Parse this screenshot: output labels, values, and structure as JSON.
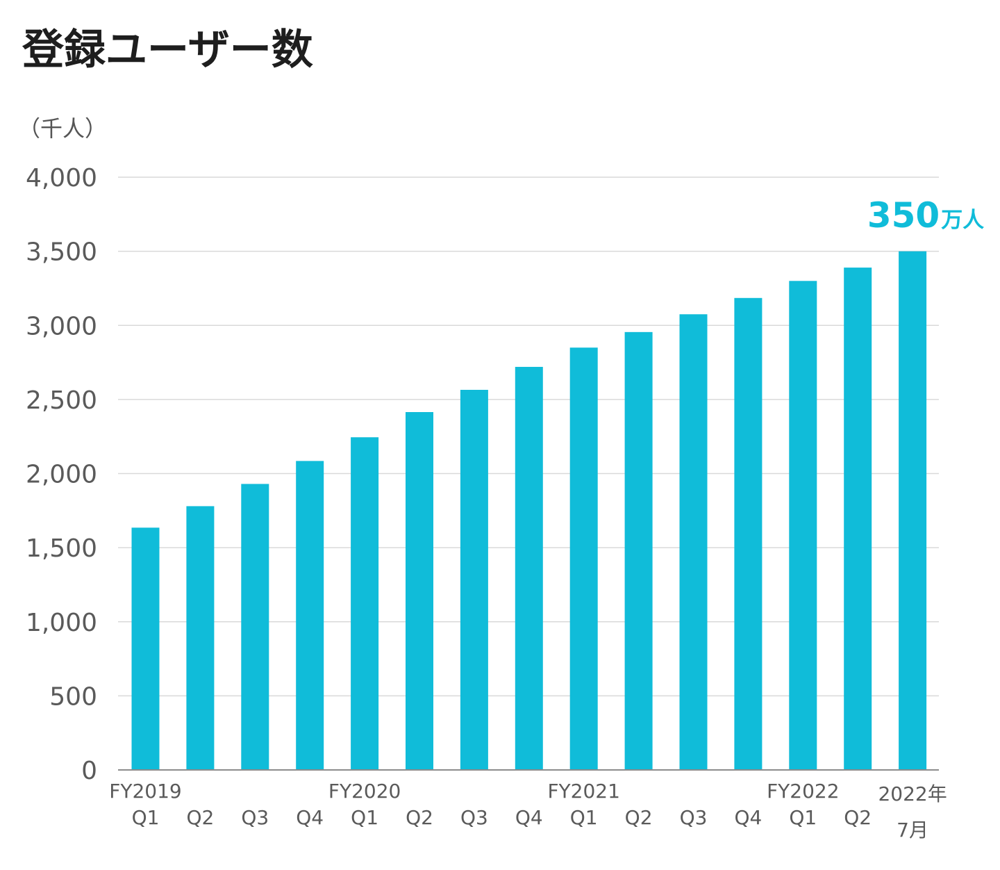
{
  "chart_data": {
    "type": "bar",
    "title": "登録ユーザー数",
    "unit_label": "（千人）",
    "ylim": [
      0,
      4000
    ],
    "yticks": [
      "0",
      "500",
      "1,000",
      "1,500",
      "2,000",
      "2,500",
      "3,000",
      "3,500",
      "4,000"
    ],
    "ytick_values": [
      0,
      500,
      1000,
      1500,
      2000,
      2500,
      3000,
      3500,
      4000
    ],
    "grid": true,
    "categories": [
      {
        "line1": "FY2019",
        "line2": "Q1"
      },
      {
        "line1": "",
        "line2": "Q2"
      },
      {
        "line1": "",
        "line2": "Q3"
      },
      {
        "line1": "",
        "line2": "Q4"
      },
      {
        "line1": "FY2020",
        "line2": "Q1"
      },
      {
        "line1": "",
        "line2": "Q2"
      },
      {
        "line1": "",
        "line2": "Q3"
      },
      {
        "line1": "",
        "line2": "Q4"
      },
      {
        "line1": "FY2021",
        "line2": "Q1"
      },
      {
        "line1": "",
        "line2": "Q2"
      },
      {
        "line1": "",
        "line2": "Q3"
      },
      {
        "line1": "",
        "line2": "Q4"
      },
      {
        "line1": "FY2022",
        "line2": "Q1"
      },
      {
        "line1": "",
        "line2": "Q2"
      },
      {
        "line1": "2022年",
        "line2": "7月"
      }
    ],
    "values": [
      1635,
      1780,
      1930,
      2085,
      2245,
      2415,
      2565,
      2720,
      2850,
      2955,
      3075,
      3185,
      3300,
      3390,
      3500
    ],
    "bar_color": "#10bcd9",
    "annotation": {
      "number": "350",
      "unit": "万人",
      "color": "#10bcd9"
    }
  }
}
